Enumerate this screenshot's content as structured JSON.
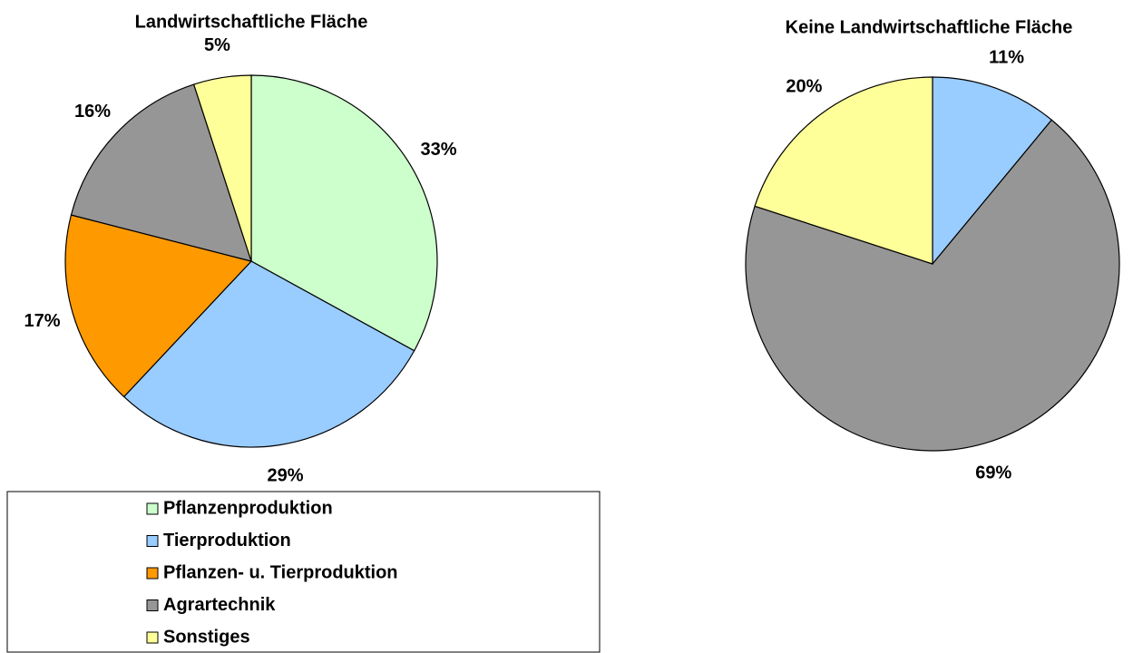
{
  "legend": {
    "entries": [
      {
        "name": "Pflanzenproduktion",
        "color": "#ccffcc"
      },
      {
        "name": "Tierproduktion",
        "color": "#99ccff"
      },
      {
        "name": "Pflanzen- u. Tierproduktion",
        "color": "#ff9900"
      },
      {
        "name": "Agrartechnik",
        "color": "#969696"
      },
      {
        "name": "Sonstiges",
        "color": "#ffff99"
      }
    ]
  },
  "chart_data": [
    {
      "type": "pie",
      "title": "Landwirtschaftliche Fläche",
      "categories": [
        "Pflanzenproduktion",
        "Tierproduktion",
        "Pflanzen- u. Tierproduktion",
        "Agrartechnik",
        "Sonstiges"
      ],
      "values": [
        33,
        29,
        17,
        16,
        5
      ],
      "value_labels": [
        "33%",
        "29%",
        "17%",
        "16%",
        "5%"
      ]
    },
    {
      "type": "pie",
      "title": "Keine Landwirtschaftliche Fläche",
      "categories": [
        "Tierproduktion",
        "Agrartechnik",
        "Sonstiges"
      ],
      "values": [
        11,
        69,
        20
      ],
      "value_labels": [
        "11%",
        "69%",
        "20%"
      ]
    }
  ]
}
